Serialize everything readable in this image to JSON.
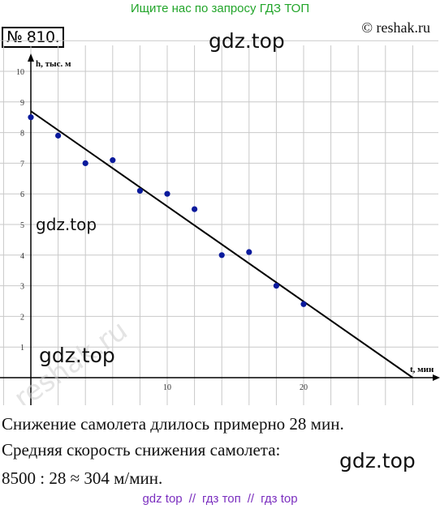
{
  "header": {
    "banner": "Ищите нас по запросу ГДЗ ТОП",
    "copyright": "© reshak.ru",
    "task_number": "№ 810."
  },
  "watermarks": {
    "text": "gdz.top",
    "diagonal": "reshak.ru"
  },
  "chart_data": {
    "type": "scatter",
    "xlabel": "t, мин",
    "ylabel": "h, тыс. м",
    "x_ticks": [
      "10",
      "20"
    ],
    "y_ticks": [
      "1",
      "2",
      "3",
      "4",
      "5",
      "6",
      "7",
      "8",
      "9",
      "10"
    ],
    "xlim": [
      0,
      30
    ],
    "ylim": [
      0,
      10
    ],
    "grid": true,
    "series": [
      {
        "color": "#0a1a9c",
        "points": [
          [
            0,
            8.5
          ],
          [
            2,
            7.9
          ],
          [
            4,
            7.0
          ],
          [
            6,
            7.1
          ],
          [
            8,
            6.1
          ],
          [
            10,
            6.0
          ],
          [
            12,
            5.5
          ],
          [
            14,
            4.0
          ],
          [
            16,
            4.1
          ],
          [
            18,
            3.0
          ],
          [
            20,
            2.4
          ]
        ]
      }
    ],
    "trend_line": {
      "from": [
        0,
        8.7
      ],
      "to": [
        28,
        0
      ],
      "color": "#000000"
    }
  },
  "solution": {
    "line1": "Снижение самолета длилось примерно 28 мин.",
    "line2": "Средняя скорость снижения самолета:",
    "line3": "8500 : 28 ≈ 304 м/мин."
  },
  "footer": {
    "link1": "gdz top",
    "sep": "//",
    "link2": "гдз топ",
    "link3": "гдз top"
  }
}
